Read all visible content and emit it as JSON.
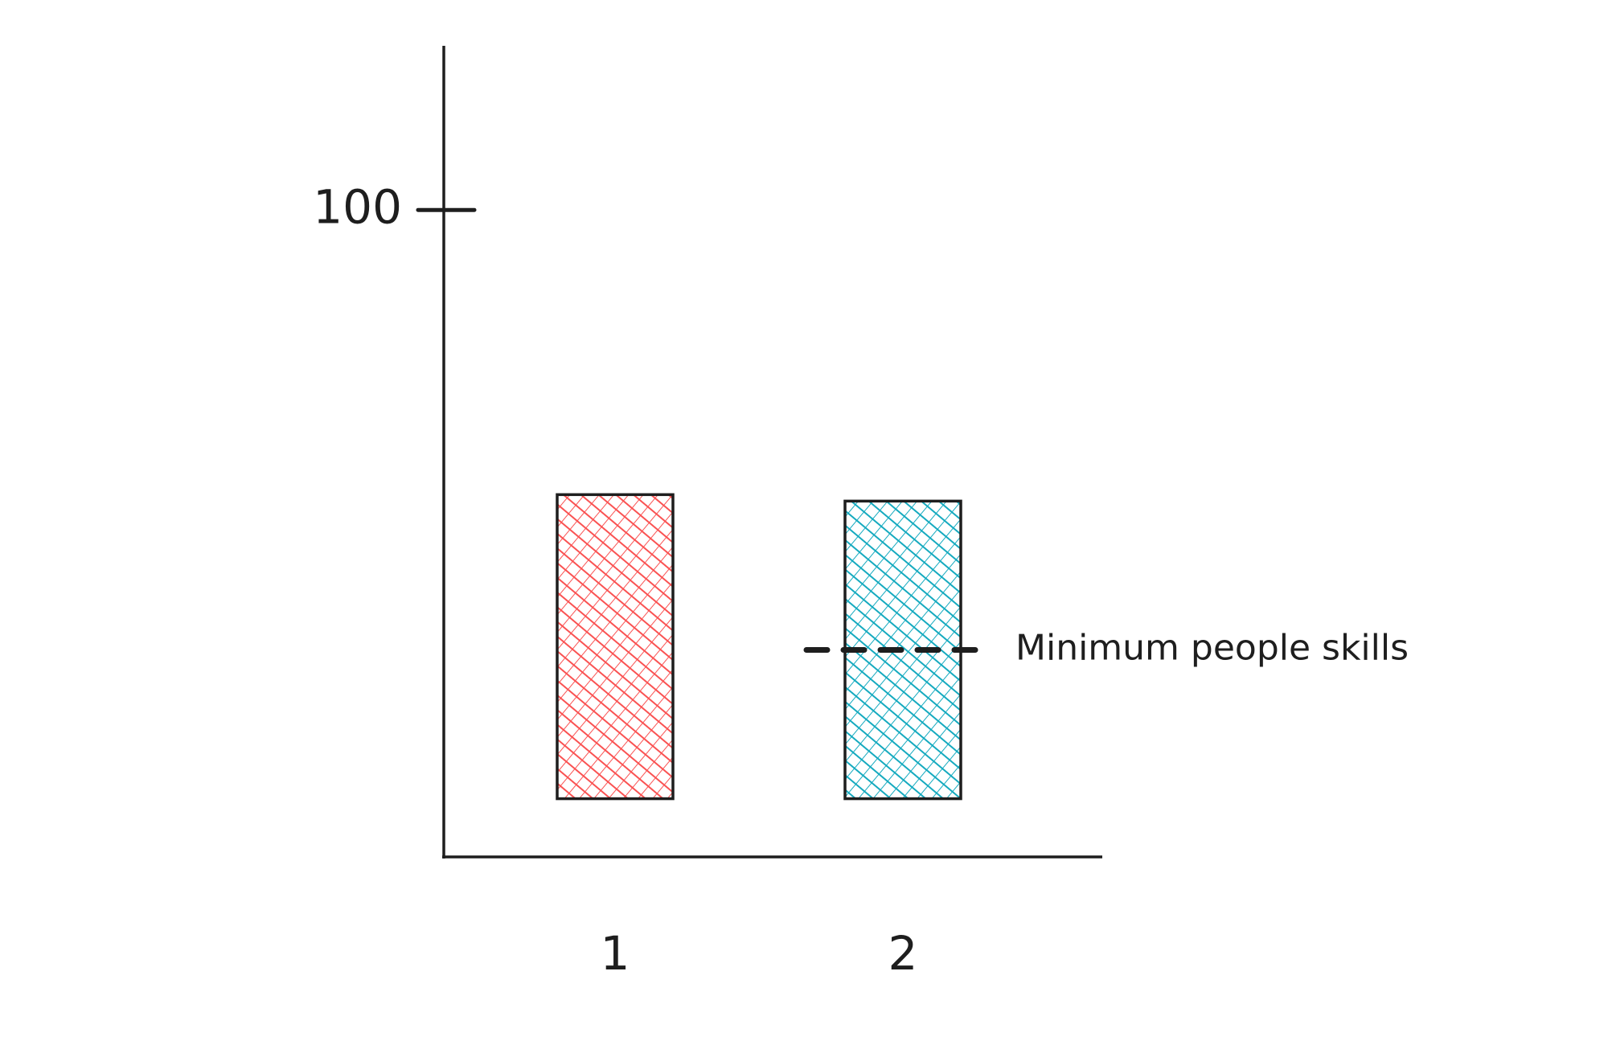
{
  "chart_data": {
    "type": "range-bar",
    "categories": [
      "1",
      "2"
    ],
    "low": [
      9,
      9
    ],
    "high": [
      56,
      55
    ],
    "colors": [
      "#fa5252",
      "#15aabf"
    ],
    "ylim": [
      0,
      125
    ],
    "yticks": [
      100
    ],
    "reference_line": {
      "category": "2",
      "value": 32,
      "label": "Minimum people skills"
    }
  }
}
